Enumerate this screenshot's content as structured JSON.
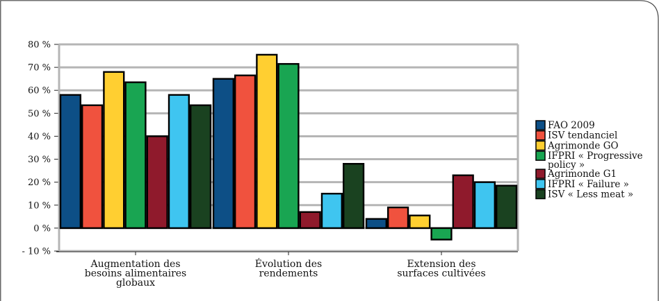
{
  "chart_data": {
    "type": "bar",
    "title": "",
    "xlabel": "",
    "ylabel": "",
    "ylim": [
      -10,
      80
    ],
    "yticks": [
      -10,
      0,
      10,
      20,
      30,
      40,
      50,
      60,
      70,
      80
    ],
    "ytick_labels": [
      "- 10 %",
      "0 %",
      "10 %",
      "20 %",
      "30 %",
      "40 %",
      "50 %",
      "60 %",
      "70 %",
      "80 %"
    ],
    "grid": true,
    "legend_position": "right",
    "categories": [
      [
        "Augmentation des",
        "besoins alimentaires",
        "globaux"
      ],
      [
        "Évolution des",
        "rendements"
      ],
      [
        "Extension des",
        "surfaces cultivées"
      ]
    ],
    "series": [
      {
        "name": [
          "FAO 2009"
        ],
        "color": "#0d4f86",
        "values": [
          58,
          65,
          4
        ]
      },
      {
        "name": [
          "ISV tendanciel"
        ],
        "color": "#f0523e",
        "values": [
          53.5,
          66.5,
          9
        ]
      },
      {
        "name": [
          "Agrimonde GO"
        ],
        "color": "#ffcf31",
        "values": [
          68,
          75.5,
          5.5
        ]
      },
      {
        "name": [
          "IFPRI « Progressive",
          "policy »"
        ],
        "color": "#19a552",
        "values": [
          63.5,
          71.5,
          -5
        ]
      },
      {
        "name": [
          "Agrimonde G1"
        ],
        "color": "#8f1a2c",
        "values": [
          40,
          7,
          23
        ]
      },
      {
        "name": [
          "IFPRI « Failure »"
        ],
        "color": "#3fc5f0",
        "values": [
          58,
          15,
          20
        ]
      },
      {
        "name": [
          "ISV « Less meat »"
        ],
        "color": "#1a4220",
        "values": [
          53.5,
          28,
          18.5
        ]
      }
    ]
  }
}
